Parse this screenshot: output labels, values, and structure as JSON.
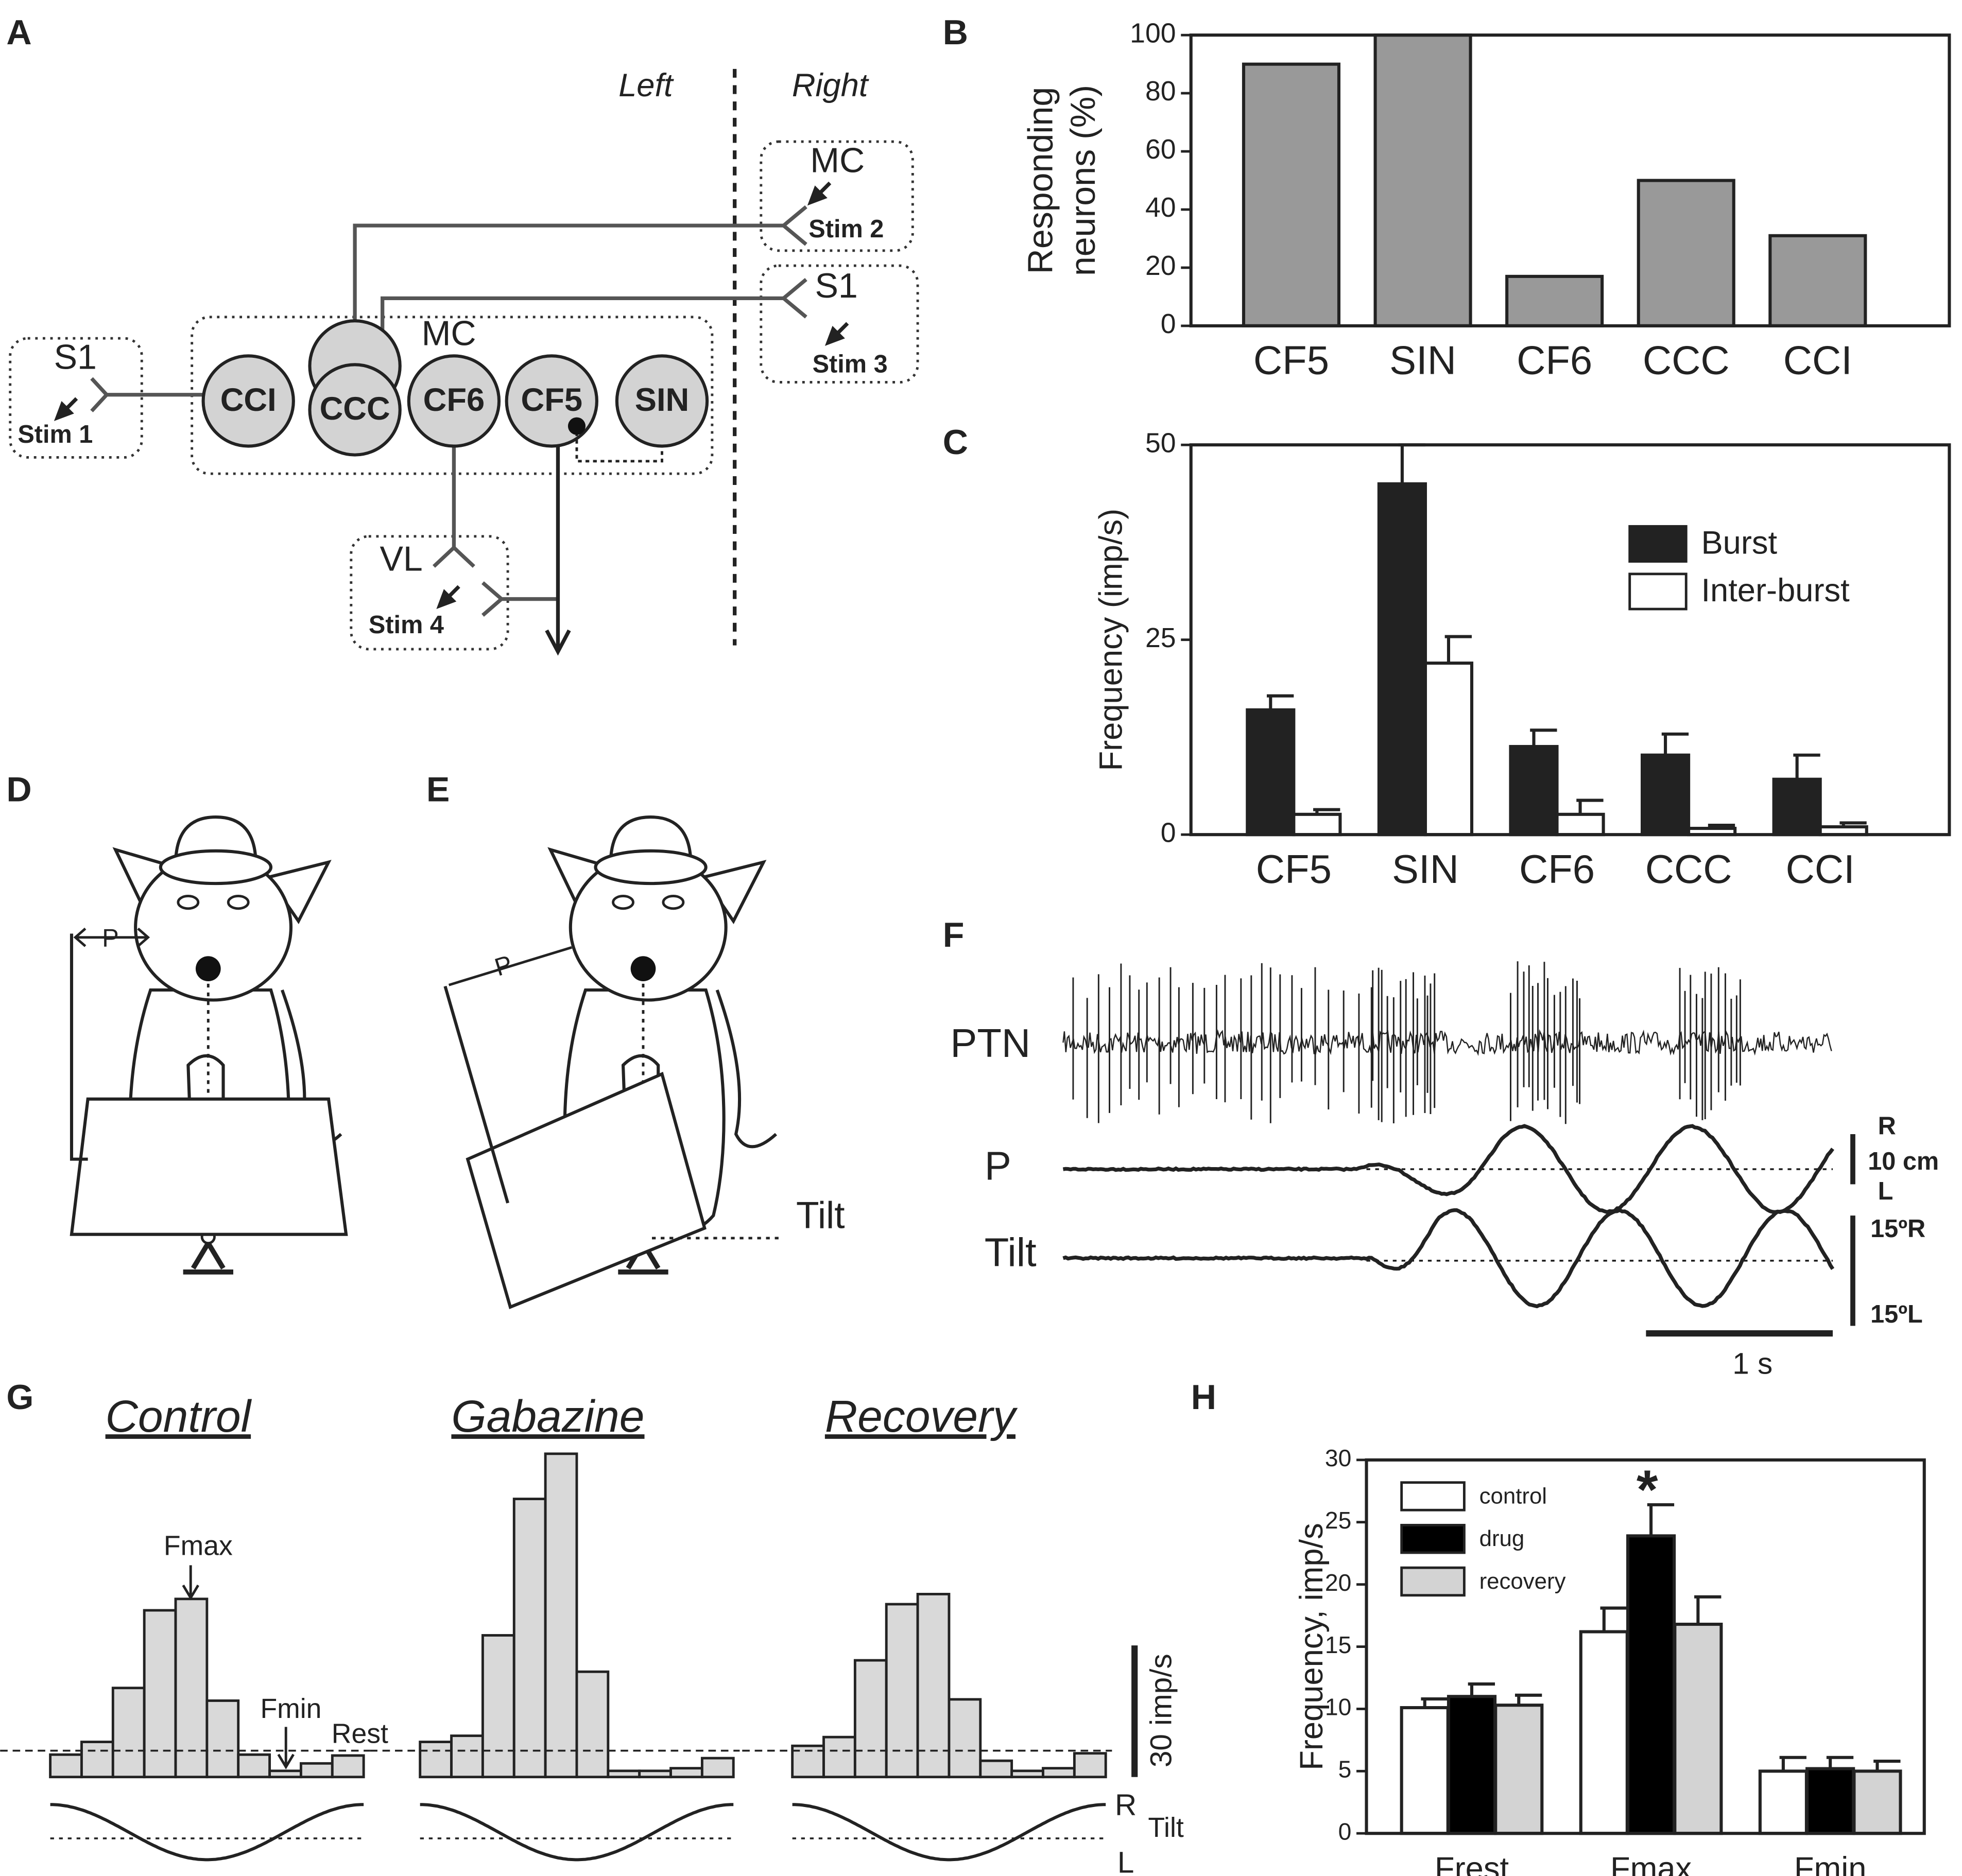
{
  "panel_labels": [
    "A",
    "B",
    "C",
    "D",
    "E",
    "F",
    "G",
    "H"
  ],
  "diagram_a": {
    "left": "Left",
    "right": "Right",
    "mc_right": "MC",
    "stim2": "Stim 2",
    "s1_right": "S1",
    "stim3": "Stim 3",
    "s1_left": "S1",
    "stim1": "Stim 1",
    "mc_center": "MC",
    "nodes": [
      "CCI",
      "CCC",
      "CF6",
      "CF5",
      "SIN"
    ],
    "vl": "VL",
    "stim4": "Stim 4"
  },
  "panel_d": {
    "p": "P"
  },
  "panel_e": {
    "p": "P",
    "tilt": "Tilt"
  },
  "panel_f": {
    "traces": [
      "PTN",
      "P",
      "Tilt"
    ],
    "p_scale": [
      "R",
      "10 cm",
      "L"
    ],
    "tilt_scale": [
      "15ºR",
      "15ºL"
    ],
    "time_bar": "1 s"
  },
  "panel_g": {
    "histograms": [
      {
        "title": "Control",
        "values": [
          5.1,
          8,
          20.3,
          38,
          40.6,
          17.4,
          5.1,
          1.4,
          3.1,
          4.9
        ],
        "rest_level": 6
      },
      {
        "title": "Gabazine",
        "values": [
          8,
          9.4,
          32.3,
          63.4,
          73.7,
          24,
          1.4,
          1.4,
          2,
          4.3
        ],
        "rest_level": 6
      },
      {
        "title": "Recovery",
        "values": [
          7.1,
          9.1,
          26.6,
          39.4,
          41.7,
          17.7,
          3.7,
          1.4,
          2,
          5.4
        ],
        "rest_level": 6
      }
    ],
    "annotations": {
      "fmax": "Fmax",
      "fmin": "Fmin",
      "rest": "Rest"
    },
    "scale_bar": {
      "value": 30,
      "label": "30 imp/s"
    },
    "tilt_labels": [
      "R",
      "Tilt",
      "L"
    ],
    "color": "#d9d9d9"
  },
  "chart_data": [
    {
      "type": "bar",
      "ylabel": [
        "Responding",
        "neurons (%)"
      ],
      "categories": [
        "CF5",
        "SIN",
        "CF6",
        "CCC",
        "CCI"
      ],
      "values": [
        90,
        100,
        17,
        50,
        31
      ],
      "color": "#999999",
      "ylim": [
        0,
        100
      ],
      "yticks": [
        0,
        20,
        40,
        60,
        80,
        100
      ]
    },
    {
      "type": "bar",
      "ylabel": "Frequency (imp/s)",
      "categories": [
        "CF5",
        "SIN",
        "CF6",
        "CCC",
        "CCI"
      ],
      "series": [
        {
          "name": "Burst",
          "color": "#222222",
          "values": [
            16,
            45,
            11.3,
            10.2,
            7.1
          ],
          "errors": [
            1.8,
            5,
            2.1,
            2.7,
            3.1
          ]
        },
        {
          "name": "Inter-burst",
          "color": "#ffffff",
          "values": [
            2.6,
            22,
            2.6,
            0.8,
            1
          ],
          "errors": [
            0.6,
            3.4,
            1.8,
            0.4,
            0.5
          ]
        }
      ],
      "ylim": [
        0,
        50
      ],
      "yticks": [
        0,
        25,
        50
      ]
    },
    {
      "type": "bar",
      "ylabel": "Frequency, imp/s",
      "categories": [
        "Frest",
        "Fmax",
        "Fmin"
      ],
      "series": [
        {
          "name": "control",
          "color": "#ffffff",
          "values": [
            10.1,
            16.2,
            5
          ],
          "errors": [
            0.7,
            1.9,
            1.1
          ]
        },
        {
          "name": "drug",
          "color": "#000000",
          "values": [
            11,
            23.9,
            5.2
          ],
          "errors": [
            1,
            2.5,
            0.9
          ]
        },
        {
          "name": "recovery",
          "color": "#d3d3d3",
          "values": [
            10.3,
            16.8,
            5
          ],
          "errors": [
            0.8,
            2.2,
            0.8
          ]
        }
      ],
      "ylim": [
        0,
        30
      ],
      "yticks": [
        0,
        5,
        10,
        15,
        20,
        25,
        30
      ],
      "annotation": "*"
    }
  ]
}
